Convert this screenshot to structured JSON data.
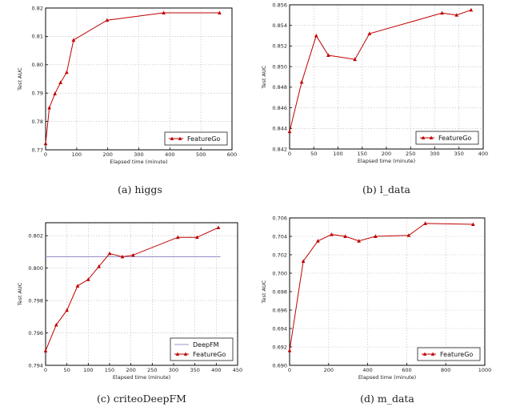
{
  "chart_data": [
    {
      "type": "line",
      "caption": "(a) higgs",
      "xlabel": "Elapsed time (minute)",
      "ylabel": "Test AUC",
      "xlim": [
        0,
        600
      ],
      "ylim": [
        0.77,
        0.82
      ],
      "xticks": [
        "0",
        "100",
        "200",
        "300",
        "400",
        "500",
        "600"
      ],
      "yticks": [
        "0.77",
        "0.78",
        "0.79",
        "0.80",
        "0.81",
        "0.82"
      ],
      "grid": true,
      "legend": {
        "position": "bottom-right",
        "entries": [
          "FeatureGo"
        ]
      },
      "series": [
        {
          "name": "FeatureGo",
          "x": [
            0,
            12,
            30,
            48,
            68,
            90,
            198,
            380,
            560
          ],
          "y": [
            0.7722,
            0.7848,
            0.7898,
            0.7937,
            0.7973,
            0.8087,
            0.8157,
            0.8183,
            0.8183
          ]
        }
      ]
    },
    {
      "type": "line",
      "caption": "(b) l_data",
      "xlabel": "Elapsed time (minute)",
      "ylabel": "Test AUC",
      "xlim": [
        0,
        400
      ],
      "ylim": [
        0.842,
        0.856
      ],
      "xticks": [
        "0",
        "50",
        "100",
        "150",
        "200",
        "250",
        "300",
        "350",
        "400"
      ],
      "yticks": [
        "0.842",
        "0.844",
        "0.846",
        "0.848",
        "0.850",
        "0.852",
        "0.854",
        "0.856"
      ],
      "grid": true,
      "legend": {
        "position": "bottom-right",
        "entries": [
          "FeatureGo"
        ]
      },
      "series": [
        {
          "name": "FeatureGo",
          "x": [
            0,
            25,
            55,
            80,
            135,
            165,
            315,
            345,
            375
          ],
          "y": [
            0.8437,
            0.8485,
            0.853,
            0.8511,
            0.8507,
            0.8532,
            0.8552,
            0.855,
            0.8555
          ]
        }
      ]
    },
    {
      "type": "line",
      "caption": "(c) criteoDeepFM",
      "xlabel": "Elapsed time (minute)",
      "ylabel": "Test AUC",
      "xlim": [
        0,
        450
      ],
      "ylim": [
        0.794,
        0.8028
      ],
      "xticks": [
        "0",
        "50",
        "100",
        "150",
        "200",
        "250",
        "300",
        "350",
        "400",
        "450"
      ],
      "yticks": [
        "0.794",
        "0.796",
        "0.798",
        "0.800",
        "0.802"
      ],
      "grid": true,
      "legend": {
        "position": "bottom-right",
        "entries": [
          "DeepFM",
          "FeatureGo"
        ]
      },
      "series": [
        {
          "name": "DeepFM",
          "style": "horizontal",
          "x": [
            0,
            410
          ],
          "y": [
            0.8007,
            0.8007
          ]
        },
        {
          "name": "FeatureGo",
          "x": [
            0,
            25,
            50,
            75,
            100,
            125,
            150,
            180,
            205,
            310,
            355,
            405
          ],
          "y": [
            0.7949,
            0.7965,
            0.7974,
            0.7989,
            0.7993,
            0.8001,
            0.8009,
            0.8007,
            0.8008,
            0.8019,
            0.8019,
            0.8025
          ]
        }
      ]
    },
    {
      "type": "line",
      "caption": "(d) m_data",
      "xlabel": "Elapsed time (minute)",
      "ylabel": "Test AUC",
      "xlim": [
        0,
        1000
      ],
      "ylim": [
        0.69,
        0.706
      ],
      "xticks": [
        "0",
        "200",
        "400",
        "600",
        "800",
        "1000"
      ],
      "yticks": [
        "0.690",
        "0.692",
        "0.694",
        "0.696",
        "0.698",
        "0.700",
        "0.702",
        "0.704",
        "0.706"
      ],
      "grid": true,
      "legend": {
        "position": "bottom-right",
        "entries": [
          "FeatureGo"
        ]
      },
      "series": [
        {
          "name": "FeatureGo",
          "x": [
            0,
            70,
            145,
            215,
            285,
            355,
            440,
            610,
            695,
            940
          ],
          "y": [
            0.6916,
            0.7013,
            0.7035,
            0.7042,
            0.704,
            0.7035,
            0.704,
            0.7041,
            0.7054,
            0.7053
          ]
        }
      ]
    }
  ]
}
